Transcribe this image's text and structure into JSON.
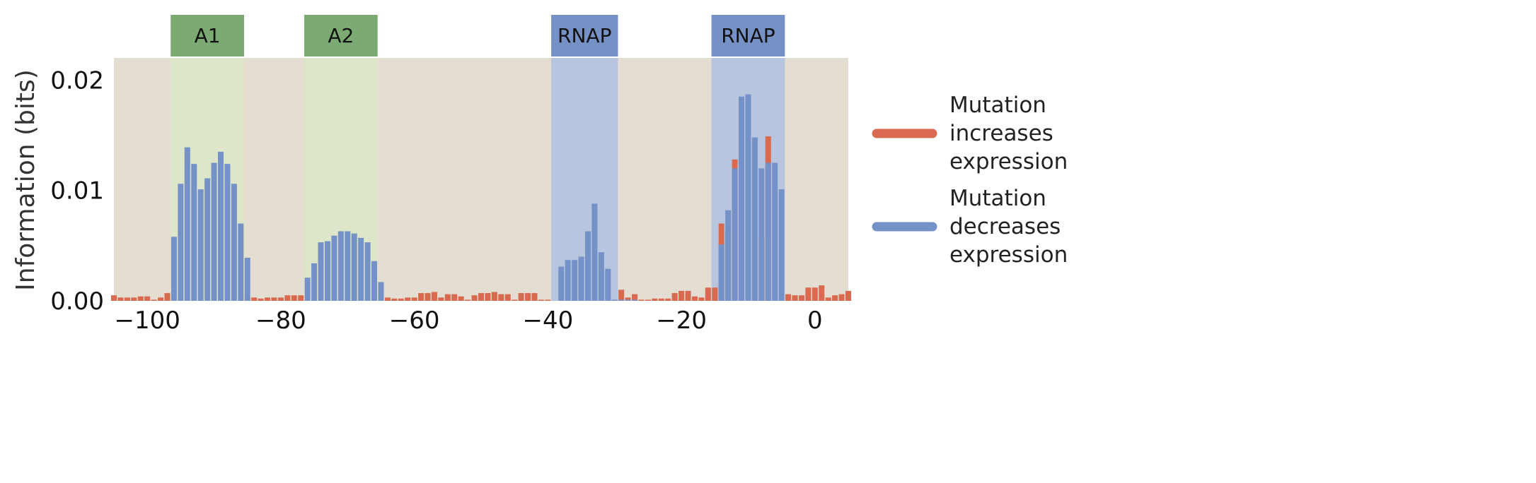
{
  "chart_data": {
    "type": "bar",
    "title": "",
    "xlabel": "",
    "ylabel": "Information (bits)",
    "xlim": [
      -105,
      5
    ],
    "ylim": [
      0,
      0.022
    ],
    "xticks": [
      -100,
      -80,
      -60,
      -40,
      -20,
      0
    ],
    "xtick_labels": [
      "−100",
      "−80",
      "−60",
      "−40",
      "−20",
      "0"
    ],
    "yticks": [
      0,
      0.01,
      0.02
    ],
    "ytick_labels": [
      "0.00",
      "0.01",
      "0.02"
    ],
    "grid": false,
    "legend_position": "right",
    "colors": {
      "plot_background": "#e4ddd1",
      "increase": "#d9694f",
      "decrease": "#7492c7",
      "activator_band": "#dde6c8",
      "activator_label": "#7bab72",
      "rnap_band": "#b8c5de",
      "rnap_label": "#7591c6"
    },
    "regions": [
      {
        "label": "A1",
        "kind": "activator",
        "start": -96,
        "end": -86
      },
      {
        "label": "A2",
        "kind": "activator",
        "start": -76,
        "end": -66
      },
      {
        "label": "RNAP",
        "kind": "rnap",
        "start": -39,
        "end": -30
      },
      {
        "label": "RNAP",
        "kind": "rnap",
        "start": -15,
        "end": -5
      }
    ],
    "series": [
      {
        "name": "Mutation increases expression",
        "color": "#d9694f",
        "points": [
          [
            -105,
            0.0005
          ],
          [
            -104,
            0.0003
          ],
          [
            -103,
            0.0003
          ],
          [
            -102,
            0.0003
          ],
          [
            -101,
            0.0004
          ],
          [
            -100,
            0.0004
          ],
          [
            -99,
            0.0001
          ],
          [
            -98,
            0.0003
          ],
          [
            -97,
            0.0007
          ],
          [
            -85,
            0.0003
          ],
          [
            -84,
            0.0003
          ],
          [
            -83,
            0.0002
          ],
          [
            -82,
            0.0003
          ],
          [
            -81,
            0.0003
          ],
          [
            -80,
            0.0003
          ],
          [
            -79,
            0.0005
          ],
          [
            -78,
            0.0005
          ],
          [
            -77,
            0.0005
          ],
          [
            -64,
            0.0003
          ],
          [
            -63,
            0.0002
          ],
          [
            -62,
            0.0002
          ],
          [
            -61,
            0.0003
          ],
          [
            -60,
            0.0003
          ],
          [
            -59,
            0.0007
          ],
          [
            -58,
            0.0007
          ],
          [
            -57,
            0.0008
          ],
          [
            -56,
            0.0003
          ],
          [
            -55,
            0.0006
          ],
          [
            -54,
            0.0006
          ],
          [
            -53,
            0.0004
          ],
          [
            -52,
            0.0001
          ],
          [
            -51,
            0.0005
          ],
          [
            -50,
            0.0007
          ],
          [
            -49,
            0.0007
          ],
          [
            -48,
            0.0008
          ],
          [
            -47,
            0.0006
          ],
          [
            -46,
            0.0006
          ],
          [
            -45,
            0.0001
          ],
          [
            -44,
            0.0007
          ],
          [
            -43,
            0.0007
          ],
          [
            -42,
            0.0007
          ],
          [
            -41,
            0.0001
          ],
          [
            -40,
            0.0001
          ],
          [
            -29,
            0.001
          ],
          [
            -28,
            0.0003
          ],
          [
            -27,
            0.0006
          ],
          [
            -26,
            0.0001
          ],
          [
            -25,
            0.0001
          ],
          [
            -24,
            0.0002
          ],
          [
            -23,
            0.0002
          ],
          [
            -22,
            0.0002
          ],
          [
            -21,
            0.0007
          ],
          [
            -20,
            0.0009
          ],
          [
            -19,
            0.0009
          ],
          [
            -18,
            0.0004
          ],
          [
            -17,
            0.0003
          ],
          [
            -16,
            0.0012
          ],
          [
            -15,
            0.0012
          ],
          [
            -14,
            0.007
          ],
          [
            -13,
            0.0065
          ],
          [
            -12,
            0.0128
          ],
          [
            -8,
            0.0058
          ],
          [
            -7,
            0.0149
          ],
          [
            -4,
            0.0006
          ],
          [
            -3,
            0.0005
          ],
          [
            -2,
            0.0005
          ],
          [
            -1,
            0.0012
          ],
          [
            0,
            0.0012
          ],
          [
            1,
            0.0014
          ],
          [
            2,
            0.0003
          ],
          [
            3,
            0.0005
          ],
          [
            4,
            0.0006
          ],
          [
            5,
            0.0009
          ]
        ]
      },
      {
        "name": "Mutation decreases expression",
        "color": "#7492c7",
        "points": [
          [
            -96,
            0.0058
          ],
          [
            -95,
            0.0106
          ],
          [
            -94,
            0.0139
          ],
          [
            -93,
            0.0124
          ],
          [
            -92,
            0.0101
          ],
          [
            -91,
            0.0111
          ],
          [
            -90,
            0.0125
          ],
          [
            -89,
            0.0135
          ],
          [
            -88,
            0.0124
          ],
          [
            -87,
            0.0106
          ],
          [
            -86,
            0.007
          ],
          [
            -85,
            0.0039
          ],
          [
            -76,
            0.0021
          ],
          [
            -75,
            0.0034
          ],
          [
            -74,
            0.0053
          ],
          [
            -73,
            0.0054
          ],
          [
            -72,
            0.0059
          ],
          [
            -71,
            0.0063
          ],
          [
            -70,
            0.0063
          ],
          [
            -69,
            0.0061
          ],
          [
            -68,
            0.0057
          ],
          [
            -67,
            0.0053
          ],
          [
            -66,
            0.0036
          ],
          [
            -65,
            0.0017
          ],
          [
            -38,
            0.0031
          ],
          [
            -37,
            0.0037
          ],
          [
            -36,
            0.0037
          ],
          [
            -35,
            0.004
          ],
          [
            -34,
            0.0063
          ],
          [
            -33,
            0.0088
          ],
          [
            -32,
            0.0044
          ],
          [
            -31,
            0.0029
          ],
          [
            -30,
            0.0001
          ],
          [
            -29,
            0.0001
          ],
          [
            -28,
            0.0001
          ],
          [
            -27,
            0.0001
          ],
          [
            -14,
            0.0051
          ],
          [
            -13,
            0.0082
          ],
          [
            -12,
            0.012
          ],
          [
            -11,
            0.0185
          ],
          [
            -10,
            0.0187
          ],
          [
            -9,
            0.0148
          ],
          [
            -8,
            0.012
          ],
          [
            -7,
            0.0125
          ],
          [
            -6,
            0.0125
          ],
          [
            -5,
            0.0101
          ]
        ]
      }
    ]
  },
  "legend": {
    "items": [
      {
        "lines": [
          "Mutation",
          "increases",
          "expression"
        ],
        "color": "#d9694f"
      },
      {
        "lines": [
          "Mutation",
          "decreases",
          "expression"
        ],
        "color": "#7492c7"
      }
    ]
  }
}
